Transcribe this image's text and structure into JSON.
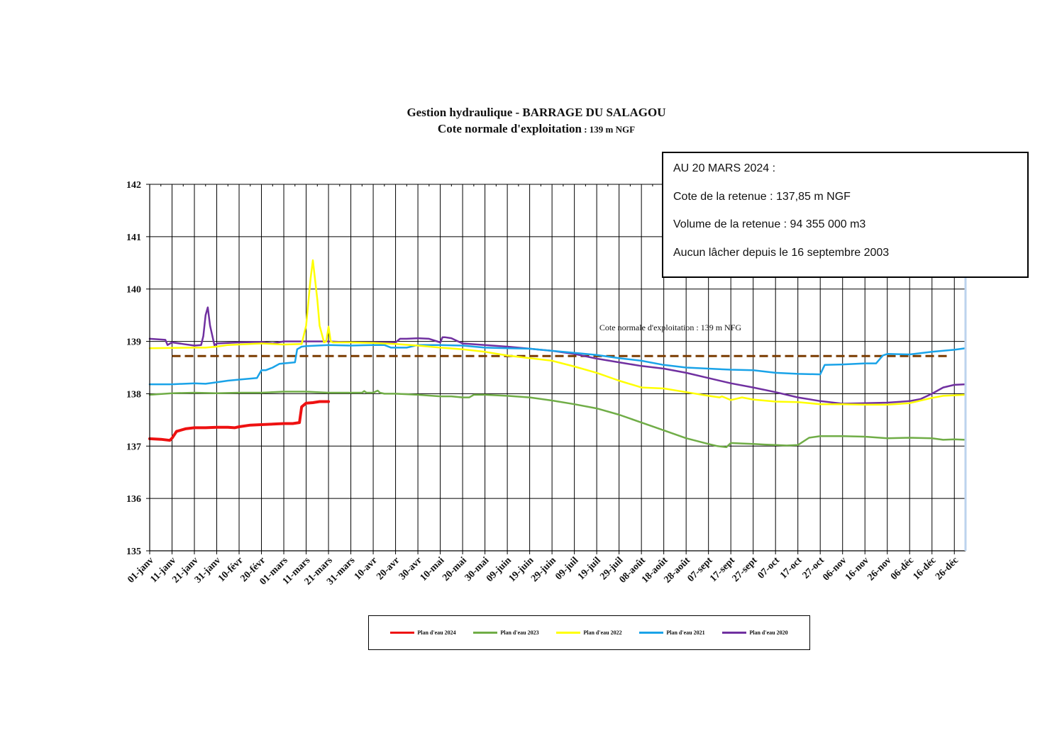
{
  "title": {
    "line1": "Gestion hydraulique - BARRAGE DU SALAGOU",
    "line2_main": "Cote normale d'exploitation",
    "line2_suffix": " : 139 m NGF"
  },
  "info_box": {
    "line1": "AU 20 MARS 2024 :",
    "line2": "Cote de la retenue : 137,85 m NGF",
    "line3": "Volume de la retenue : 94 355 000 m3",
    "line4": "Aucun lâcher depuis le 16 septembre 2003"
  },
  "chart_data": {
    "type": "line",
    "title": "Gestion hydraulique - BARRAGE DU SALAGOU",
    "subtitle": "Cote normale d'exploitation : 139 m NGF",
    "xlabel": "",
    "ylabel": "",
    "ylim": [
      135,
      142
    ],
    "yticks": [
      135,
      136,
      137,
      138,
      139,
      140,
      141,
      142
    ],
    "xlim": [
      0,
      365
    ],
    "x_tick_days": [
      0,
      10,
      20,
      30,
      40,
      50,
      60,
      70,
      80,
      90,
      100,
      110,
      120,
      130,
      140,
      150,
      160,
      170,
      180,
      190,
      200,
      210,
      220,
      230,
      240,
      250,
      260,
      270,
      280,
      290,
      300,
      310,
      320,
      330,
      340,
      350,
      360
    ],
    "x_tick_labels": [
      "01-janv",
      "11-janv",
      "21-janv",
      "31-janv",
      "10-févr",
      "20-févr",
      "01-mars",
      "11-mars",
      "21-mars",
      "31-mars",
      "10-avr",
      "20-avr",
      "30-avr",
      "10-mai",
      "20-mai",
      "30-mai",
      "09-juin",
      "19-juin",
      "29-juin",
      "09-juil",
      "19-juil",
      "29-juil",
      "08-août",
      "18-août",
      "28-août",
      "07-sept",
      "17-sept",
      "27-sept",
      "07-oct",
      "17-oct",
      "27-oct",
      "06-nov",
      "16-nov",
      "26-nov",
      "06-déc",
      "16-déc",
      "26-déc"
    ],
    "grid": true,
    "legend_position": "bottom",
    "reference_line": {
      "label": "Cote normale d'exploitation : 139 m NFG",
      "y": 138.72,
      "color": "#7a3b00",
      "x": [
        10,
        358
      ]
    },
    "series": [
      {
        "name": "Plan d'eau 2024",
        "color": "#ee1111",
        "width": 4,
        "x": [
          0,
          5,
          9,
          10,
          12,
          16,
          20,
          25,
          30,
          35,
          38,
          40,
          45,
          50,
          55,
          60,
          64,
          67,
          68,
          70,
          73,
          76,
          80
        ],
        "y": [
          137.14,
          137.13,
          137.11,
          137.15,
          137.28,
          137.33,
          137.35,
          137.35,
          137.36,
          137.36,
          137.35,
          137.37,
          137.4,
          137.41,
          137.42,
          137.43,
          137.43,
          137.45,
          137.75,
          137.82,
          137.83,
          137.85,
          137.85
        ]
      },
      {
        "name": "Plan d'eau 2023",
        "color": "#70ad47",
        "width": 2.5,
        "x": [
          0,
          10,
          20,
          30,
          40,
          50,
          60,
          70,
          80,
          90,
          95,
          96,
          97,
          100,
          102,
          103,
          105,
          110,
          120,
          130,
          135,
          140,
          143,
          145,
          150,
          160,
          170,
          180,
          190,
          200,
          210,
          220,
          230,
          240,
          250,
          254,
          258,
          260,
          265,
          270,
          275,
          280,
          285,
          290,
          295,
          300,
          310,
          320,
          330,
          340,
          350,
          355,
          360,
          365
        ],
        "y": [
          137.98,
          138.01,
          138.02,
          138.01,
          138.02,
          138.02,
          138.04,
          138.04,
          138.02,
          138.02,
          138.02,
          138.05,
          138.02,
          138.02,
          138.06,
          138.02,
          138.0,
          138.0,
          137.98,
          137.95,
          137.95,
          137.93,
          137.93,
          137.98,
          137.98,
          137.96,
          137.93,
          137.87,
          137.8,
          137.72,
          137.6,
          137.45,
          137.3,
          137.15,
          137.04,
          137.0,
          136.98,
          137.06,
          137.05,
          137.04,
          137.03,
          137.02,
          137.01,
          137.02,
          137.16,
          137.19,
          137.19,
          137.18,
          137.15,
          137.16,
          137.15,
          137.12,
          137.13,
          137.12
        ]
      },
      {
        "name": "Plan d'eau 2022",
        "color": "#ffff00",
        "width": 2.5,
        "x": [
          0,
          20,
          25,
          30,
          35,
          40,
          50,
          60,
          68,
          70,
          72,
          73,
          75,
          76,
          78,
          79,
          80,
          81,
          82,
          90,
          100,
          110,
          120,
          130,
          140,
          150,
          160,
          170,
          180,
          190,
          200,
          210,
          220,
          230,
          240,
          250,
          255,
          256,
          260,
          265,
          270,
          280,
          290,
          300,
          310,
          320,
          330,
          340,
          350,
          355,
          360,
          365
        ],
        "y": [
          138.87,
          138.88,
          138.88,
          138.9,
          138.93,
          138.94,
          138.96,
          138.94,
          138.95,
          139.3,
          140.2,
          140.55,
          139.8,
          139.3,
          138.98,
          139.0,
          139.28,
          139.0,
          138.98,
          138.98,
          138.97,
          138.95,
          138.92,
          138.88,
          138.85,
          138.8,
          138.73,
          138.68,
          138.63,
          138.52,
          138.4,
          138.25,
          138.12,
          138.1,
          138.03,
          137.96,
          137.93,
          137.95,
          137.88,
          137.93,
          137.89,
          137.85,
          137.84,
          137.8,
          137.8,
          137.79,
          137.79,
          137.82,
          137.92,
          137.96,
          137.97,
          137.98
        ]
      },
      {
        "name": "Plan d'eau 2021",
        "color": "#1aa3e8",
        "width": 2.5,
        "x": [
          0,
          10,
          20,
          25,
          30,
          35,
          40,
          48,
          50,
          52,
          55,
          58,
          60,
          65,
          66,
          68,
          70,
          75,
          80,
          90,
          100,
          105,
          108,
          110,
          115,
          120,
          130,
          140,
          150,
          160,
          170,
          180,
          190,
          200,
          210,
          220,
          230,
          240,
          250,
          260,
          270,
          280,
          290,
          300,
          302,
          310,
          320,
          325,
          328,
          330,
          340,
          350,
          360,
          365
        ],
        "y": [
          138.18,
          138.18,
          138.2,
          138.19,
          138.22,
          138.25,
          138.27,
          138.3,
          138.45,
          138.45,
          138.5,
          138.57,
          138.58,
          138.6,
          138.85,
          138.9,
          138.91,
          138.92,
          138.93,
          138.92,
          138.93,
          138.93,
          138.88,
          138.88,
          138.88,
          138.93,
          138.93,
          138.92,
          138.88,
          138.87,
          138.86,
          138.82,
          138.78,
          138.74,
          138.68,
          138.63,
          138.55,
          138.5,
          138.48,
          138.46,
          138.45,
          138.4,
          138.38,
          138.37,
          138.55,
          138.56,
          138.58,
          138.58,
          138.73,
          138.76,
          138.75,
          138.8,
          138.84,
          138.87
        ]
      },
      {
        "name": "Plan d'eau 2020",
        "color": "#7030a0",
        "width": 2.5,
        "x": [
          0,
          7,
          8,
          10,
          15,
          20,
          23,
          24,
          25,
          26,
          27,
          29,
          30,
          40,
          50,
          55,
          60,
          70,
          80,
          90,
          100,
          110,
          112,
          115,
          120,
          125,
          130,
          131,
          132,
          135,
          137,
          140,
          150,
          160,
          170,
          180,
          190,
          200,
          210,
          220,
          230,
          240,
          250,
          260,
          270,
          280,
          290,
          300,
          310,
          320,
          330,
          340,
          345,
          350,
          355,
          360,
          365
        ],
        "y": [
          139.05,
          139.03,
          138.93,
          138.98,
          138.95,
          138.92,
          138.93,
          139.1,
          139.5,
          139.65,
          139.3,
          138.92,
          138.96,
          138.98,
          138.99,
          138.96,
          139.0,
          139.0,
          139.0,
          138.98,
          138.98,
          138.98,
          139.05,
          139.05,
          139.06,
          139.05,
          138.98,
          139.08,
          139.08,
          139.06,
          139.02,
          138.96,
          138.93,
          138.9,
          138.86,
          138.82,
          138.76,
          138.67,
          138.6,
          138.53,
          138.48,
          138.4,
          138.3,
          138.2,
          138.12,
          138.03,
          137.93,
          137.86,
          137.81,
          137.82,
          137.83,
          137.86,
          137.9,
          138.0,
          138.12,
          138.17,
          138.18
        ]
      }
    ]
  }
}
